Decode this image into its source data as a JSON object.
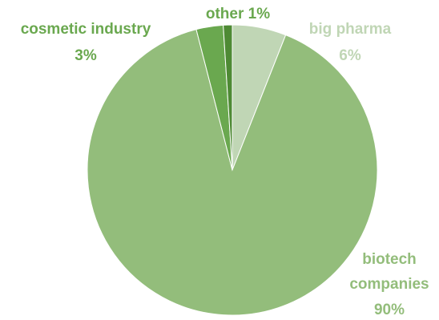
{
  "chart_data": {
    "type": "pie",
    "title": "",
    "slices": [
      {
        "label": "big pharma",
        "value": 6,
        "display": "6%",
        "color": "#c0d6b5"
      },
      {
        "label": "biotech companies",
        "value": 90,
        "display": "90%",
        "color": "#93bd7b"
      },
      {
        "label": "cosmetic industry",
        "value": 3,
        "display": "3%",
        "color": "#6aa84f"
      },
      {
        "label": "other",
        "value": 1,
        "display": "1%",
        "color": "#4e8a34"
      }
    ],
    "label_colors": {
      "big pharma": "#c0d6b5",
      "biotech companies": "#93bd7b",
      "cosmetic industry": "#6aa84f",
      "other": "#6aa84f"
    },
    "start_angle": "12 o'clock",
    "direction": "clockwise",
    "legend": "none"
  }
}
